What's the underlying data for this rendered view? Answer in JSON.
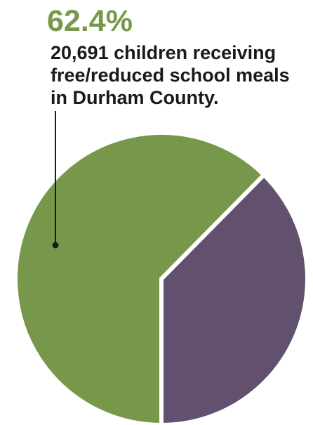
{
  "chart_data": {
    "type": "pie",
    "title": "",
    "slices": [
      {
        "label": "",
        "value": 62.4,
        "color": "#77984a"
      },
      {
        "label": "",
        "value": 37.6,
        "color": "#62516e"
      }
    ],
    "legend": "none",
    "annotation": {
      "value_label": "62.4%",
      "value_label_color": "#77984a",
      "text_lines": [
        "20,691 children receiving",
        "free/reduced school meals",
        "in Durham County."
      ],
      "text_color": "#1a1a1a"
    }
  }
}
